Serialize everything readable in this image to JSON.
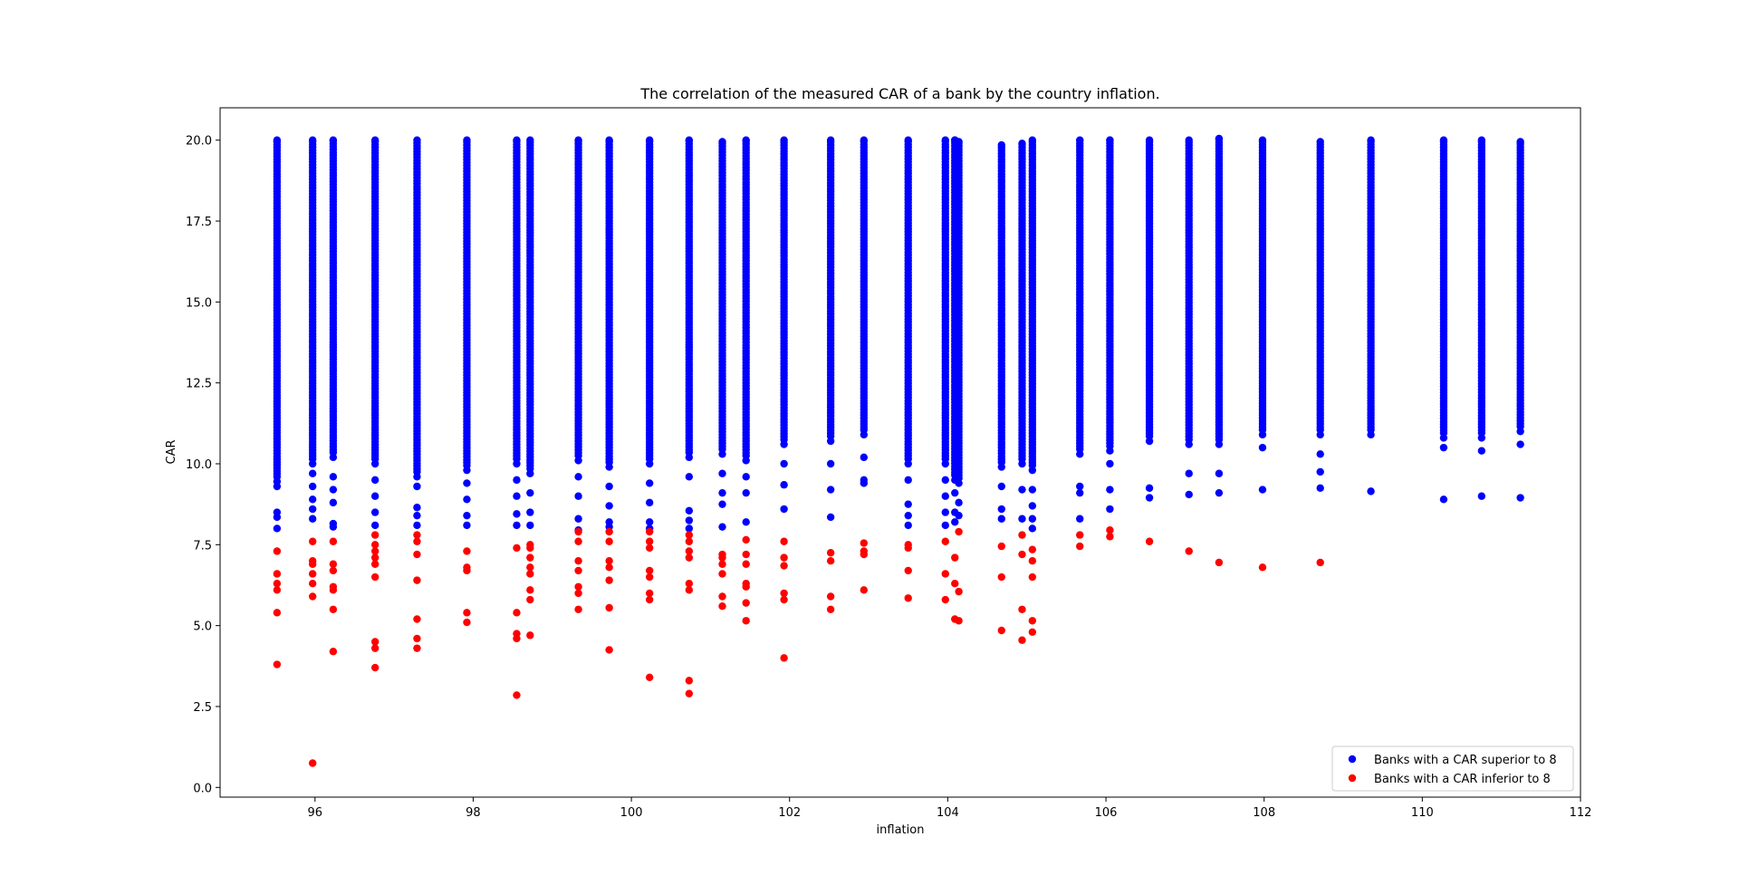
{
  "chart_data": {
    "type": "scatter",
    "title": "The correlation of the measured CAR of a bank by the country inflation.",
    "xlabel": "inflation",
    "ylabel": "CAR",
    "xlim": [
      94.8,
      112.0
    ],
    "ylim": [
      -0.3,
      21.0
    ],
    "xticks": [
      96,
      98,
      100,
      102,
      104,
      106,
      108,
      110,
      112
    ],
    "yticks": [
      0.0,
      2.5,
      5.0,
      7.5,
      10.0,
      12.5,
      15.0,
      17.5,
      20.0
    ],
    "xtick_labels": [
      "96",
      "98",
      "100",
      "102",
      "104",
      "106",
      "108",
      "110",
      "112"
    ],
    "ytick_labels": [
      "0.0",
      "2.5",
      "5.0",
      "7.5",
      "10.0",
      "12.5",
      "15.0",
      "17.5",
      "20.0"
    ],
    "grid": false,
    "legend_position": "lower-right",
    "series": [
      {
        "name": "Banks with a CAR superior to 8",
        "color": "#0000ff",
        "columns": [
          {
            "x": 95.52,
            "y_min": 8.0,
            "y_max": 20.0,
            "sparse": [
              8.0,
              8.35,
              8.5,
              9.3,
              9.45
            ]
          },
          {
            "x": 95.97,
            "y_min": 8.3,
            "y_max": 20.0,
            "sparse": [
              8.3,
              8.6,
              8.9,
              9.3,
              9.7,
              10.0
            ]
          },
          {
            "x": 96.23,
            "y_min": 8.05,
            "y_max": 20.0,
            "sparse": [
              8.05,
              8.15,
              8.8,
              9.2,
              9.6,
              10.2
            ]
          },
          {
            "x": 96.76,
            "y_min": 8.1,
            "y_max": 20.0,
            "sparse": [
              8.1,
              8.5,
              9.0,
              9.5,
              10.0
            ]
          },
          {
            "x": 97.29,
            "y_min": 8.1,
            "y_max": 20.0,
            "sparse": [
              8.1,
              8.4,
              8.65,
              9.3,
              9.6
            ]
          },
          {
            "x": 97.92,
            "y_min": 8.1,
            "y_max": 20.0,
            "sparse": [
              8.1,
              8.4,
              8.9,
              9.4,
              9.8
            ]
          },
          {
            "x": 98.55,
            "y_min": 8.1,
            "y_max": 20.0,
            "sparse": [
              8.1,
              8.45,
              9.0,
              9.5,
              10.0
            ]
          },
          {
            "x": 98.72,
            "y_min": 8.1,
            "y_max": 20.0,
            "sparse": [
              8.1,
              8.5,
              9.1,
              9.7
            ]
          },
          {
            "x": 99.33,
            "y_min": 7.95,
            "y_max": 20.0,
            "sparse": [
              7.95,
              8.3,
              9.0,
              9.6,
              10.1
            ]
          },
          {
            "x": 99.72,
            "y_min": 8.05,
            "y_max": 20.0,
            "sparse": [
              8.05,
              8.2,
              8.7,
              9.3,
              9.9
            ]
          },
          {
            "x": 100.23,
            "y_min": 8.0,
            "y_max": 20.0,
            "sparse": [
              8.0,
              8.2,
              8.8,
              9.4,
              10.0
            ]
          },
          {
            "x": 100.73,
            "y_min": 8.0,
            "y_max": 20.0,
            "sparse": [
              8.0,
              8.25,
              8.55,
              9.6,
              10.2
            ]
          },
          {
            "x": 101.15,
            "y_min": 8.05,
            "y_max": 19.95,
            "sparse": [
              8.05,
              8.75,
              9.1,
              9.7,
              10.3
            ]
          },
          {
            "x": 101.45,
            "y_min": 8.2,
            "y_max": 20.0,
            "sparse": [
              8.2,
              9.1,
              9.6,
              10.1
            ]
          },
          {
            "x": 101.93,
            "y_min": 8.6,
            "y_max": 20.0,
            "sparse": [
              8.6,
              9.35,
              10.0,
              10.6
            ]
          },
          {
            "x": 102.52,
            "y_min": 8.35,
            "y_max": 20.0,
            "sparse": [
              8.35,
              9.2,
              10.0,
              10.7
            ]
          },
          {
            "x": 102.94,
            "y_min": 9.4,
            "y_max": 20.0,
            "sparse": [
              9.4,
              9.5,
              10.2,
              10.9
            ]
          },
          {
            "x": 103.5,
            "y_min": 8.1,
            "y_max": 20.0,
            "sparse": [
              8.1,
              8.4,
              8.75,
              9.5,
              10.0
            ]
          },
          {
            "x": 103.97,
            "y_min": 8.1,
            "y_max": 20.0,
            "sparse": [
              8.1,
              8.5,
              9.0,
              9.5,
              10.0
            ]
          },
          {
            "x": 104.09,
            "y_min": 8.2,
            "y_max": 20.0,
            "sparse": [
              8.2,
              8.5,
              9.1,
              9.5
            ]
          },
          {
            "x": 104.14,
            "y_min": 8.4,
            "y_max": 19.95,
            "sparse": [
              8.4,
              8.8,
              9.4
            ]
          },
          {
            "x": 104.68,
            "y_min": 8.3,
            "y_max": 19.85,
            "sparse": [
              8.3,
              8.6,
              9.3,
              9.9
            ]
          },
          {
            "x": 104.94,
            "y_min": 8.3,
            "y_max": 19.9,
            "sparse": [
              8.3,
              9.2,
              10.0
            ]
          },
          {
            "x": 105.07,
            "y_min": 8.0,
            "y_max": 20.0,
            "sparse": [
              8.0,
              8.3,
              8.7,
              9.2,
              9.8
            ]
          },
          {
            "x": 105.67,
            "y_min": 8.3,
            "y_max": 20.0,
            "sparse": [
              8.3,
              9.1,
              9.3,
              10.3
            ]
          },
          {
            "x": 106.05,
            "y_min": 8.6,
            "y_max": 20.0,
            "sparse": [
              8.6,
              9.2,
              10.0,
              10.4
            ]
          },
          {
            "x": 106.55,
            "y_min": 8.95,
            "y_max": 20.0,
            "sparse": [
              8.95,
              9.25,
              10.7
            ]
          },
          {
            "x": 107.05,
            "y_min": 9.05,
            "y_max": 20.0,
            "sparse": [
              9.05,
              9.7,
              10.6
            ]
          },
          {
            "x": 107.43,
            "y_min": 9.1,
            "y_max": 20.05,
            "sparse": [
              9.1,
              9.7,
              10.6
            ]
          },
          {
            "x": 107.98,
            "y_min": 9.2,
            "y_max": 20.0,
            "sparse": [
              9.2,
              10.5,
              10.9
            ]
          },
          {
            "x": 108.71,
            "y_min": 9.25,
            "y_max": 19.95,
            "sparse": [
              9.25,
              9.75,
              10.3,
              10.9
            ]
          },
          {
            "x": 109.35,
            "y_min": 9.15,
            "y_max": 20.0,
            "sparse": [
              9.15,
              10.9
            ]
          },
          {
            "x": 110.27,
            "y_min": 8.9,
            "y_max": 20.0,
            "sparse": [
              8.9,
              10.5,
              10.8
            ]
          },
          {
            "x": 110.75,
            "y_min": 9.0,
            "y_max": 20.0,
            "sparse": [
              9.0,
              10.4,
              10.8
            ]
          },
          {
            "x": 111.24,
            "y_min": 8.95,
            "y_max": 19.95,
            "sparse": [
              8.95,
              10.6,
              11.0
            ]
          }
        ]
      },
      {
        "name": "Banks with a CAR inferior to 8",
        "color": "#ff0000",
        "points": [
          [
            95.52,
            7.3
          ],
          [
            95.52,
            6.6
          ],
          [
            95.52,
            6.3
          ],
          [
            95.52,
            6.1
          ],
          [
            95.52,
            5.4
          ],
          [
            95.52,
            3.8
          ],
          [
            95.97,
            7.6
          ],
          [
            95.97,
            7.0
          ],
          [
            95.97,
            6.9
          ],
          [
            95.97,
            6.6
          ],
          [
            95.97,
            6.3
          ],
          [
            95.97,
            5.9
          ],
          [
            95.97,
            0.75
          ],
          [
            96.23,
            7.6
          ],
          [
            96.23,
            6.9
          ],
          [
            96.23,
            6.7
          ],
          [
            96.23,
            6.2
          ],
          [
            96.23,
            6.1
          ],
          [
            96.23,
            5.5
          ],
          [
            96.23,
            4.2
          ],
          [
            96.76,
            7.8
          ],
          [
            96.76,
            7.5
          ],
          [
            96.76,
            7.3
          ],
          [
            96.76,
            7.1
          ],
          [
            96.76,
            6.9
          ],
          [
            96.76,
            6.5
          ],
          [
            96.76,
            4.5
          ],
          [
            96.76,
            4.3
          ],
          [
            96.76,
            3.7
          ],
          [
            97.29,
            7.8
          ],
          [
            97.29,
            7.6
          ],
          [
            97.29,
            7.2
          ],
          [
            97.29,
            6.4
          ],
          [
            97.29,
            5.2
          ],
          [
            97.29,
            4.6
          ],
          [
            97.29,
            4.3
          ],
          [
            97.92,
            7.3
          ],
          [
            97.92,
            6.8
          ],
          [
            97.92,
            6.7
          ],
          [
            97.92,
            5.4
          ],
          [
            97.92,
            5.1
          ],
          [
            98.55,
            7.4
          ],
          [
            98.55,
            5.4
          ],
          [
            98.55,
            4.75
          ],
          [
            98.55,
            4.6
          ],
          [
            98.55,
            2.85
          ],
          [
            98.72,
            7.5
          ],
          [
            98.72,
            7.4
          ],
          [
            98.72,
            7.1
          ],
          [
            98.72,
            6.8
          ],
          [
            98.72,
            6.6
          ],
          [
            98.72,
            6.1
          ],
          [
            98.72,
            5.8
          ],
          [
            98.72,
            4.7
          ],
          [
            99.33,
            7.9
          ],
          [
            99.33,
            7.6
          ],
          [
            99.33,
            7.0
          ],
          [
            99.33,
            6.7
          ],
          [
            99.33,
            6.2
          ],
          [
            99.33,
            6.0
          ],
          [
            99.33,
            5.5
          ],
          [
            99.72,
            7.9
          ],
          [
            99.72,
            7.6
          ],
          [
            99.72,
            7.0
          ],
          [
            99.72,
            6.8
          ],
          [
            99.72,
            6.4
          ],
          [
            99.72,
            5.55
          ],
          [
            99.72,
            4.25
          ],
          [
            100.23,
            7.9
          ],
          [
            100.23,
            7.6
          ],
          [
            100.23,
            7.4
          ],
          [
            100.23,
            6.7
          ],
          [
            100.23,
            6.5
          ],
          [
            100.23,
            6.0
          ],
          [
            100.23,
            5.8
          ],
          [
            100.23,
            3.4
          ],
          [
            100.73,
            7.8
          ],
          [
            100.73,
            7.6
          ],
          [
            100.73,
            7.3
          ],
          [
            100.73,
            7.1
          ],
          [
            100.73,
            6.3
          ],
          [
            100.73,
            6.1
          ],
          [
            100.73,
            3.3
          ],
          [
            100.73,
            2.9
          ],
          [
            101.15,
            7.2
          ],
          [
            101.15,
            7.1
          ],
          [
            101.15,
            6.9
          ],
          [
            101.15,
            6.6
          ],
          [
            101.15,
            5.9
          ],
          [
            101.15,
            5.6
          ],
          [
            101.45,
            7.65
          ],
          [
            101.45,
            7.2
          ],
          [
            101.45,
            6.9
          ],
          [
            101.45,
            6.3
          ],
          [
            101.45,
            6.2
          ],
          [
            101.45,
            5.7
          ],
          [
            101.45,
            5.15
          ],
          [
            101.93,
            7.6
          ],
          [
            101.93,
            7.1
          ],
          [
            101.93,
            6.85
          ],
          [
            101.93,
            6.0
          ],
          [
            101.93,
            5.8
          ],
          [
            101.93,
            4.0
          ],
          [
            102.52,
            7.25
          ],
          [
            102.52,
            7.0
          ],
          [
            102.52,
            5.9
          ],
          [
            102.52,
            5.5
          ],
          [
            102.94,
            7.55
          ],
          [
            102.94,
            7.3
          ],
          [
            102.94,
            7.2
          ],
          [
            102.94,
            6.1
          ],
          [
            103.5,
            7.5
          ],
          [
            103.5,
            7.4
          ],
          [
            103.5,
            6.7
          ],
          [
            103.5,
            5.85
          ],
          [
            103.97,
            7.6
          ],
          [
            103.97,
            6.6
          ],
          [
            103.97,
            5.8
          ],
          [
            104.09,
            7.1
          ],
          [
            104.09,
            6.3
          ],
          [
            104.09,
            5.2
          ],
          [
            104.14,
            7.9
          ],
          [
            104.14,
            6.05
          ],
          [
            104.14,
            5.15
          ],
          [
            104.68,
            7.45
          ],
          [
            104.68,
            6.5
          ],
          [
            104.68,
            4.85
          ],
          [
            104.94,
            7.8
          ],
          [
            104.94,
            7.2
          ],
          [
            104.94,
            5.5
          ],
          [
            104.94,
            4.55
          ],
          [
            105.07,
            7.35
          ],
          [
            105.07,
            7.0
          ],
          [
            105.07,
            6.5
          ],
          [
            105.07,
            5.15
          ],
          [
            105.07,
            4.8
          ],
          [
            105.67,
            7.8
          ],
          [
            105.67,
            7.45
          ],
          [
            106.05,
            7.95
          ],
          [
            106.05,
            7.75
          ],
          [
            106.55,
            7.6
          ],
          [
            107.05,
            7.3
          ],
          [
            107.43,
            6.95
          ],
          [
            107.98,
            6.8
          ],
          [
            108.71,
            6.95
          ]
        ]
      }
    ]
  },
  "legend": {
    "items": [
      {
        "label": "Banks with a CAR superior to 8",
        "color": "#0000ff"
      },
      {
        "label": "Banks with a CAR inferior to 8",
        "color": "#ff0000"
      }
    ]
  }
}
